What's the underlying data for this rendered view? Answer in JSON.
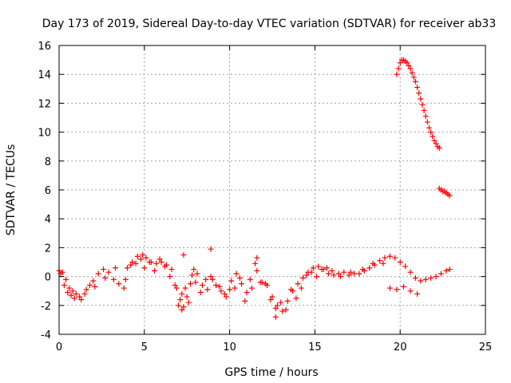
{
  "chart_data": {
    "type": "scatter",
    "title": "Day 173 of 2019, Sidereal Day-to-day VTEC variation (SDTVAR) for receiver ab33",
    "xlabel": "GPS time / hours",
    "ylabel": "SDTVAR / TECUs",
    "xlim": [
      0,
      25
    ],
    "ylim": [
      -4,
      16
    ],
    "xticks": [
      0,
      5,
      10,
      15,
      20,
      25
    ],
    "yticks": [
      -4,
      -2,
      0,
      2,
      4,
      6,
      8,
      10,
      12,
      14,
      16
    ],
    "grid": true,
    "marker": "plus",
    "color": "#ff0000",
    "series": [
      {
        "name": "SDTVAR",
        "x": [
          0.0,
          0.2,
          0.4,
          0.6,
          0.8,
          1.0,
          1.2,
          1.5,
          1.8,
          2.0,
          2.3,
          2.6,
          2.9,
          3.2,
          3.5,
          3.8,
          4.0,
          4.3,
          4.6,
          4.9,
          5.1,
          5.4,
          5.7,
          6.0,
          6.3,
          6.6,
          6.9,
          7.1,
          7.3,
          7.5,
          7.7,
          7.9,
          8.1,
          8.4,
          8.6,
          8.9,
          9.2,
          9.5,
          9.8,
          10.1,
          10.4,
          10.7,
          11.0,
          11.3,
          11.6,
          11.9,
          12.2,
          12.5,
          12.8,
          13.1,
          13.4,
          13.7,
          14.0,
          14.3,
          14.6,
          14.9,
          15.2,
          15.5,
          15.8,
          16.1,
          16.4,
          16.7,
          17.0,
          17.3,
          17.6,
          17.9,
          18.2,
          18.5,
          18.8,
          19.1,
          19.4,
          19.7,
          20.0,
          20.3,
          20.6,
          20.9,
          21.2,
          21.5,
          21.8,
          22.1,
          22.4,
          22.7,
          22.9,
          0.1,
          0.3,
          0.5,
          0.7,
          0.9,
          1.3,
          1.6,
          2.1,
          2.7,
          3.3,
          3.9,
          4.2,
          4.5,
          4.8,
          5.0,
          5.3,
          5.6,
          5.9,
          6.2,
          6.5,
          6.8,
          7.0,
          7.2,
          7.4,
          7.6,
          7.8,
          8.0,
          8.3,
          8.7,
          9.0,
          9.4,
          9.7,
          10.0,
          10.3,
          10.6,
          10.9,
          11.2,
          11.5,
          11.8,
          12.1,
          12.4,
          12.7,
          13.0,
          13.3,
          13.6,
          13.9,
          14.2,
          14.5,
          14.8,
          15.1,
          15.4,
          15.7,
          16.0,
          16.5,
          17.1,
          17.8,
          18.4,
          19.0,
          19.4,
          19.8,
          20.2,
          20.6,
          21.0,
          8.9,
          12.7,
          7.3,
          7.2,
          11.6,
          19.8,
          19.9,
          20.0,
          20.1,
          20.2,
          20.3,
          20.4,
          20.5,
          20.6,
          20.7,
          20.8,
          20.9,
          21.0,
          21.1,
          21.2,
          21.3,
          21.4,
          21.5,
          21.6,
          21.7,
          21.8,
          21.9,
          22.0,
          22.1,
          22.2,
          22.3,
          22.3,
          22.4,
          22.5,
          22.6,
          22.7,
          22.8,
          22.9
        ],
        "y": [
          0.4,
          0.3,
          -0.2,
          -0.8,
          -1.0,
          -1.2,
          -1.4,
          -1.2,
          -0.6,
          -0.3,
          0.2,
          0.5,
          0.3,
          -0.2,
          -0.5,
          -0.8,
          0.6,
          1.0,
          1.4,
          1.5,
          1.3,
          1.0,
          0.9,
          1.0,
          0.8,
          0.5,
          -0.8,
          -1.6,
          -2.1,
          -1.4,
          -0.5,
          0.5,
          0.2,
          -0.6,
          -0.2,
          0.0,
          -0.6,
          -1.0,
          -1.4,
          -0.3,
          0.2,
          -0.5,
          -1.1,
          -0.8,
          0.4,
          -0.4,
          -0.6,
          -1.4,
          -2.0,
          -2.4,
          -1.7,
          -1.0,
          -0.5,
          -0.1,
          0.3,
          0.6,
          0.7,
          0.5,
          0.2,
          0.1,
          0.2,
          0.3,
          0.1,
          0.2,
          0.2,
          0.4,
          0.6,
          0.8,
          1.1,
          1.3,
          1.4,
          1.3,
          1.0,
          0.7,
          0.3,
          -0.1,
          -0.3,
          -0.2,
          -0.1,
          0.0,
          0.2,
          0.4,
          0.5,
          0.2,
          -0.6,
          -1.1,
          -1.3,
          -1.5,
          -1.6,
          -0.9,
          -0.7,
          -0.1,
          0.6,
          -0.2,
          0.8,
          0.9,
          1.2,
          0.6,
          1.0,
          0.4,
          1.2,
          0.7,
          0.0,
          -0.6,
          -2.0,
          -1.2,
          -0.8,
          -1.8,
          0.1,
          -0.4,
          -1.1,
          -0.9,
          -0.2,
          -0.7,
          -1.2,
          -0.9,
          -0.8,
          -0.1,
          -1.7,
          -0.2,
          0.9,
          -0.4,
          -0.5,
          -1.6,
          -2.2,
          -1.8,
          -2.3,
          -0.9,
          -1.5,
          -0.8,
          0.1,
          0.3,
          0.0,
          0.5,
          0.6,
          0.4,
          0.0,
          0.3,
          0.5,
          0.9,
          0.9,
          -0.8,
          -0.9,
          -0.7,
          -1.0,
          -1.2,
          1.9,
          -2.8,
          1.5,
          -2.3,
          1.3,
          14.0,
          14.4,
          14.8,
          15.0,
          15.0,
          14.9,
          14.8,
          14.6,
          14.4,
          14.1,
          13.8,
          13.5,
          13.1,
          12.7,
          12.3,
          11.9,
          11.5,
          11.1,
          10.7,
          10.3,
          10.0,
          9.7,
          9.4,
          9.2,
          9.0,
          8.9,
          6.1,
          6.0,
          5.9,
          5.9,
          5.8,
          5.7,
          5.6
        ]
      }
    ]
  }
}
